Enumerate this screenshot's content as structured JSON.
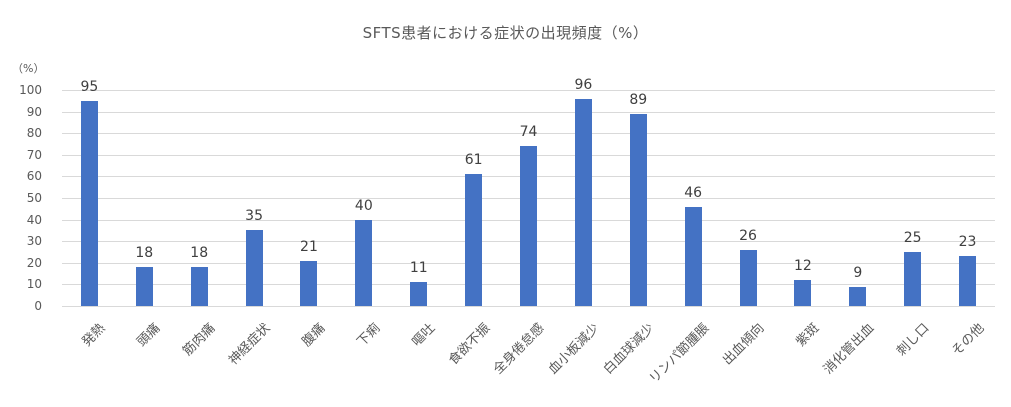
{
  "chart_data": {
    "type": "bar",
    "title": "SFTS患者における症状の出現頻度（%）",
    "xlabel": "",
    "ylabel": "(%)",
    "ylim": [
      0,
      100
    ],
    "yticks": [
      0,
      10,
      20,
      30,
      40,
      50,
      60,
      70,
      80,
      90,
      100
    ],
    "grid": true,
    "legend": null,
    "bar_color": "#4472c4",
    "data_labels": true,
    "categories": [
      "発熱",
      "頭痛",
      "筋肉痛",
      "神経症状",
      "腹痛",
      "下痢",
      "嘔吐",
      "食欲不振",
      "全身倦怠感",
      "血小板減少",
      "白血球減少",
      "リンパ節腫脹",
      "出血傾向",
      "紫斑",
      "消化管出血",
      "刺し口",
      "その他"
    ],
    "values": [
      95,
      18,
      18,
      35,
      21,
      40,
      11,
      61,
      74,
      96,
      89,
      46,
      26,
      12,
      9,
      25,
      23
    ]
  },
  "title": "SFTS患者における症状の出現頻度（%）",
  "unit_label": "（%）",
  "yticks": [
    "0",
    "10",
    "20",
    "30",
    "40",
    "50",
    "60",
    "70",
    "80",
    "90",
    "100"
  ]
}
